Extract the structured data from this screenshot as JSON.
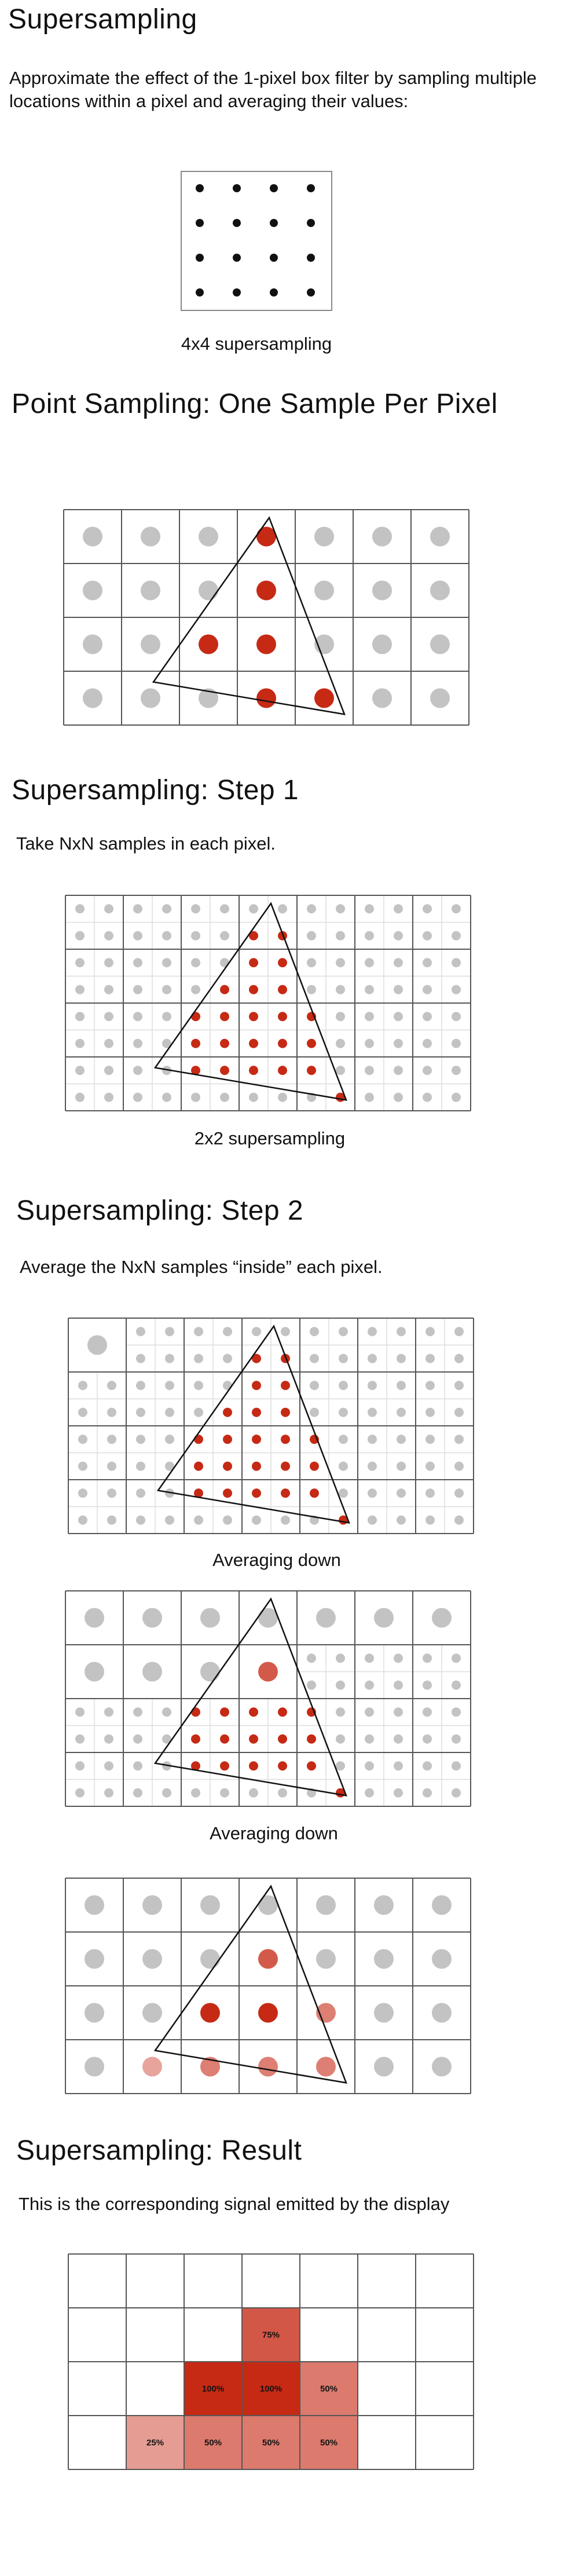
{
  "colors": {
    "inside": "#c62a15",
    "outside": "#c3c3c3",
    "sample": "#111111",
    "grid": "#555555",
    "subgrid": "#dddddd"
  },
  "sec_intro": {
    "title": "Supersampling",
    "text": "Approximate the effect of the 1-pixel box filter by sampling multiple locations within a pixel and averaging their values:",
    "caption": "4x4 supersampling"
  },
  "sec_point": {
    "title": "Point Sampling: One Sample Per Pixel"
  },
  "sec_step1": {
    "title": "Supersampling: Step 1",
    "text": "Take NxN samples in each pixel.",
    "caption": "2x2 supersampling"
  },
  "sec_step2": {
    "title": "Supersampling: Step 2",
    "text": "Average the NxN samples “inside” each pixel.",
    "caption_a": "Averaging down",
    "caption_b": "Averaging down"
  },
  "sec_result": {
    "title": "Supersampling: Result",
    "text": "This is the corresponding signal emitted by the display",
    "cells": [
      {
        "row": 1,
        "col": 3,
        "label": "75%",
        "coverage": 0.75
      },
      {
        "row": 2,
        "col": 2,
        "label": "100%",
        "coverage": 1.0
      },
      {
        "row": 2,
        "col": 3,
        "label": "100%",
        "coverage": 1.0
      },
      {
        "row": 2,
        "col": 4,
        "label": "50%",
        "coverage": 0.5
      },
      {
        "row": 3,
        "col": 1,
        "label": "25%",
        "coverage": 0.25
      },
      {
        "row": 3,
        "col": 2,
        "label": "50%",
        "coverage": 0.5
      },
      {
        "row": 3,
        "col": 3,
        "label": "50%",
        "coverage": 0.5
      },
      {
        "row": 3,
        "col": 4,
        "label": "50%",
        "coverage": 0.5
      }
    ]
  }
}
